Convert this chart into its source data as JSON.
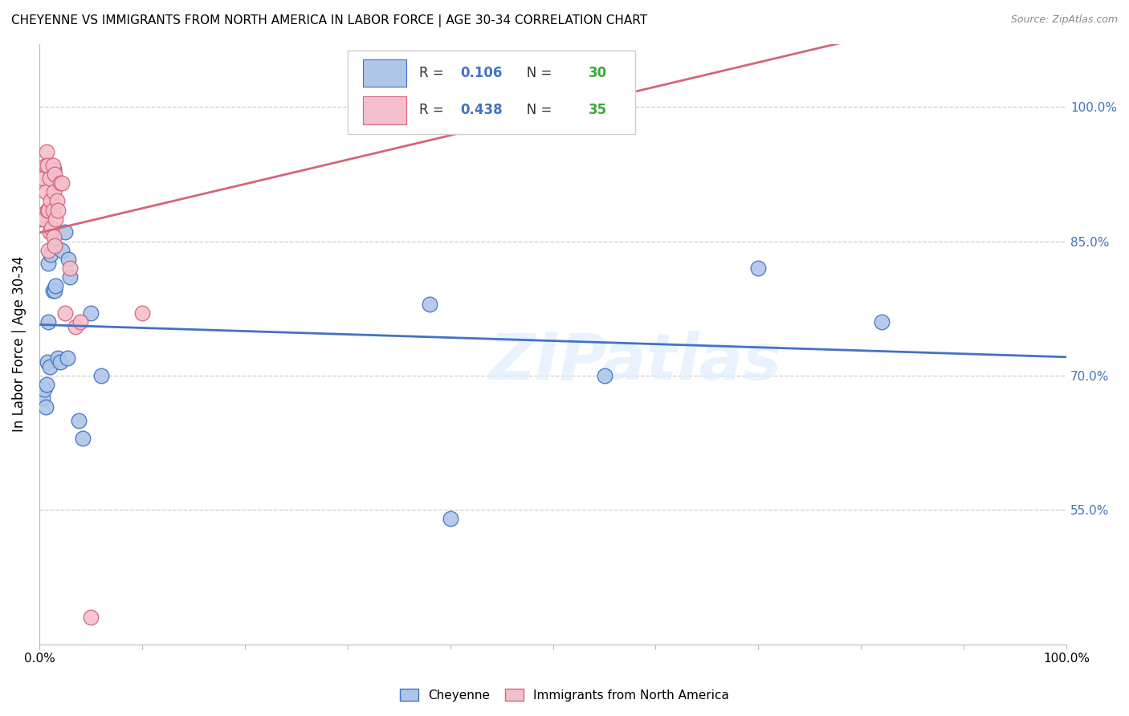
{
  "title": "CHEYENNE VS IMMIGRANTS FROM NORTH AMERICA IN LABOR FORCE | AGE 30-34 CORRELATION CHART",
  "source": "Source: ZipAtlas.com",
  "ylabel": "In Labor Force | Age 30-34",
  "watermark": "ZIPatlas",
  "cheyenne_color": "#aec6e8",
  "cheyenne_edge_color": "#4472c4",
  "immigrant_color": "#f4bfcc",
  "immigrant_edge_color": "#d4667a",
  "cheyenne_line_color": "#4472c4",
  "immigrant_line_color": "#d4667a",
  "R_color": "#4472c4",
  "N_color": "#3aaa35",
  "R1": "0.106",
  "N1": "30",
  "R2": "0.438",
  "N2": "35",
  "xlim": [
    0.0,
    1.0
  ],
  "ylim": [
    0.4,
    1.07
  ],
  "y_ticks": [
    0.55,
    0.7,
    0.85,
    1.0
  ],
  "x_ticks": [
    0.0,
    0.1,
    0.2,
    0.3,
    0.4,
    0.5,
    0.6,
    0.7,
    0.8,
    0.9,
    1.0
  ],
  "cheyenne_x": [
    0.003,
    0.005,
    0.006,
    0.007,
    0.008,
    0.009,
    0.009,
    0.01,
    0.011,
    0.012,
    0.013,
    0.014,
    0.015,
    0.016,
    0.018,
    0.02,
    0.022,
    0.025,
    0.027,
    0.028,
    0.03,
    0.038,
    0.042,
    0.05,
    0.06,
    0.38,
    0.4,
    0.55,
    0.7,
    0.82
  ],
  "cheyenne_y": [
    0.675,
    0.685,
    0.665,
    0.69,
    0.715,
    0.825,
    0.76,
    0.71,
    0.835,
    0.86,
    0.795,
    0.93,
    0.795,
    0.8,
    0.72,
    0.715,
    0.84,
    0.86,
    0.72,
    0.83,
    0.81,
    0.65,
    0.63,
    0.77,
    0.7,
    0.78,
    0.54,
    0.7,
    0.82,
    0.76
  ],
  "immigrant_x": [
    0.002,
    0.003,
    0.004,
    0.005,
    0.006,
    0.006,
    0.007,
    0.008,
    0.008,
    0.009,
    0.009,
    0.01,
    0.01,
    0.011,
    0.012,
    0.013,
    0.013,
    0.014,
    0.014,
    0.015,
    0.015,
    0.016,
    0.017,
    0.018,
    0.02,
    0.022,
    0.025,
    0.03,
    0.035,
    0.04,
    0.05,
    0.38,
    0.385,
    0.44,
    0.1
  ],
  "immigrant_y": [
    0.875,
    0.88,
    0.92,
    0.875,
    0.905,
    0.935,
    0.95,
    0.935,
    0.885,
    0.885,
    0.84,
    0.92,
    0.86,
    0.895,
    0.865,
    0.935,
    0.885,
    0.905,
    0.855,
    0.925,
    0.845,
    0.875,
    0.895,
    0.885,
    0.915,
    0.915,
    0.77,
    0.82,
    0.755,
    0.76,
    0.43,
    1.0,
    1.0,
    1.0,
    0.77
  ]
}
